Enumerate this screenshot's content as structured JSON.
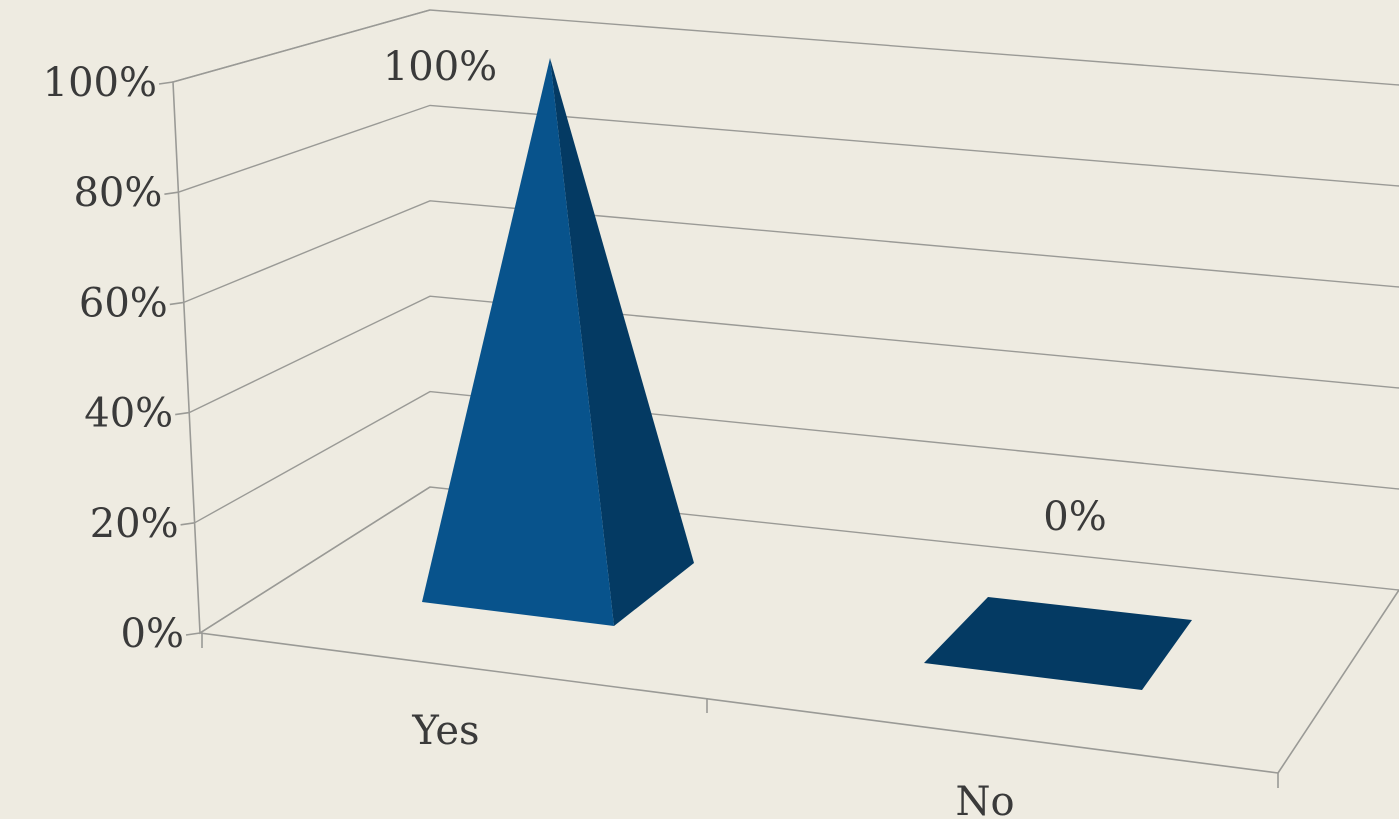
{
  "chart_data": {
    "type": "bar",
    "style": "3d-pyramid",
    "categories": [
      "Yes",
      "No"
    ],
    "values": [
      100,
      0
    ],
    "value_labels": [
      "100%",
      "0%"
    ],
    "ylim": [
      0,
      100
    ],
    "y_ticks": [
      "0%",
      "20%",
      "40%",
      "60%",
      "80%",
      "100%"
    ],
    "grid": true,
    "legend": "none",
    "colors": {
      "front": "#08538c",
      "side": "#043a63",
      "background": "#eeebe1",
      "grid": "#9a9a96",
      "text": "#3a3a3a"
    }
  }
}
